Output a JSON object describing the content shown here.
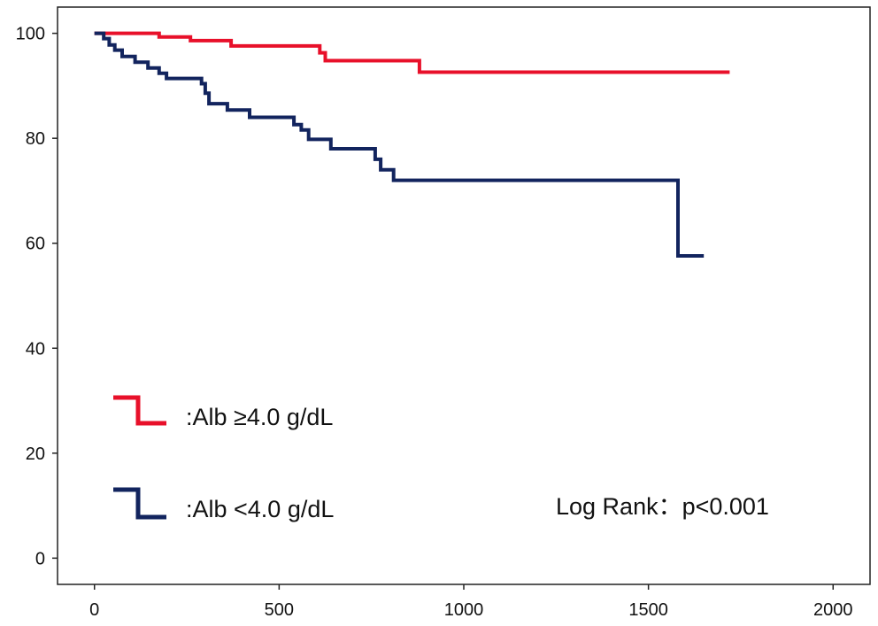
{
  "chart_data": {
    "type": "line",
    "title": "",
    "xlabel": "",
    "ylabel": "",
    "xlim": [
      -100,
      2100
    ],
    "ylim": [
      -5,
      105
    ],
    "x_ticks": [
      0,
      500,
      1000,
      1500,
      2000
    ],
    "y_ticks": [
      0,
      20,
      40,
      60,
      80,
      100
    ],
    "x_tick_labels": [
      "0",
      "500",
      "1000",
      "1500",
      "2000"
    ],
    "y_tick_labels": [
      "0",
      "20",
      "40",
      "60",
      "80",
      "100"
    ],
    "grid": false,
    "legend_position": "bottom-left",
    "series": [
      {
        "name": ":Alb ≥4.0 g/dL",
        "color": "#e8102a",
        "step": true,
        "points": [
          [
            0,
            100
          ],
          [
            175,
            100
          ],
          [
            175,
            99.3
          ],
          [
            260,
            99.3
          ],
          [
            260,
            98.6
          ],
          [
            370,
            98.6
          ],
          [
            370,
            97.6
          ],
          [
            610,
            97.6
          ],
          [
            610,
            96.3
          ],
          [
            625,
            96.3
          ],
          [
            625,
            94.8
          ],
          [
            880,
            94.8
          ],
          [
            880,
            92.6
          ],
          [
            1720,
            92.6
          ]
        ]
      },
      {
        "name": ":Alb <4.0 g/dL",
        "color": "#12245e",
        "step": true,
        "points": [
          [
            0,
            100
          ],
          [
            25,
            100
          ],
          [
            25,
            99
          ],
          [
            40,
            99
          ],
          [
            40,
            97.8
          ],
          [
            55,
            97.8
          ],
          [
            55,
            96.8
          ],
          [
            75,
            96.8
          ],
          [
            75,
            95.6
          ],
          [
            110,
            95.6
          ],
          [
            110,
            94.5
          ],
          [
            145,
            94.5
          ],
          [
            145,
            93.4
          ],
          [
            175,
            93.4
          ],
          [
            175,
            92.4
          ],
          [
            195,
            92.4
          ],
          [
            195,
            91.4
          ],
          [
            290,
            91.4
          ],
          [
            290,
            90.4
          ],
          [
            300,
            90.4
          ],
          [
            300,
            88.6
          ],
          [
            310,
            88.6
          ],
          [
            310,
            86.6
          ],
          [
            360,
            86.6
          ],
          [
            360,
            85.4
          ],
          [
            420,
            85.4
          ],
          [
            420,
            84
          ],
          [
            540,
            84
          ],
          [
            540,
            82.6
          ],
          [
            560,
            82.6
          ],
          [
            560,
            81.6
          ],
          [
            580,
            81.6
          ],
          [
            580,
            79.8
          ],
          [
            640,
            79.8
          ],
          [
            640,
            78
          ],
          [
            760,
            78
          ],
          [
            760,
            76
          ],
          [
            775,
            76
          ],
          [
            775,
            74
          ],
          [
            810,
            74
          ],
          [
            810,
            72
          ],
          [
            1580,
            72
          ],
          [
            1580,
            57.6
          ],
          [
            1650,
            57.6
          ]
        ]
      }
    ],
    "annotations": [
      {
        "text": "Log Rank：p<0.001"
      }
    ]
  }
}
